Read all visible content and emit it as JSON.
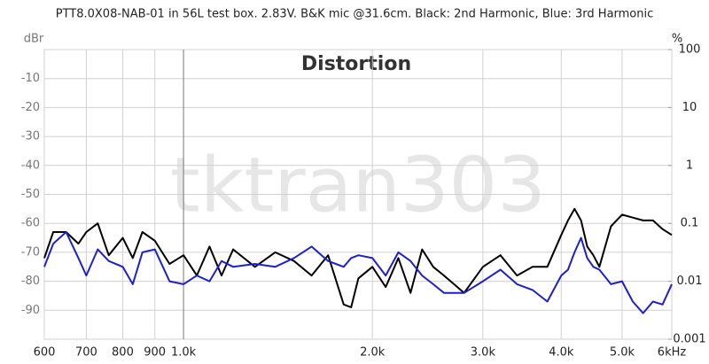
{
  "chart_data": {
    "type": "line",
    "title": "PTT8.0X08-NAB-01 in 56L test box. 2.83V. B&K mic @31.6cm. Black: 2nd Harmonic, Blue: 3rd Harmonic",
    "subtitle": "Distortion",
    "watermark": "tktran303",
    "y_label": "dBr",
    "y2_label": "%",
    "x_log": true,
    "y2_log": true,
    "grid": true,
    "xlim": [
      600,
      6000
    ],
    "xticks": [
      600,
      700,
      800,
      900,
      {
        "value": 1000,
        "label": "1.0k"
      },
      {
        "value": 2000,
        "label": "2.0k"
      },
      {
        "value": 3000,
        "label": "3.0k"
      },
      {
        "value": 4000,
        "label": "4.0k"
      },
      {
        "value": 5000,
        "label": "5.0k"
      },
      {
        "value": 6000,
        "label": "6kHz"
      }
    ],
    "ylim": [
      -100,
      0
    ],
    "yticks": [
      -90,
      -80,
      -70,
      -60,
      -50,
      -40,
      -30,
      -20,
      -10
    ],
    "y2lim": [
      0.001,
      100
    ],
    "y2ticks": [
      0.001,
      0.01,
      0.1,
      1,
      10,
      100
    ],
    "x": [
      600,
      620,
      650,
      680,
      700,
      730,
      760,
      800,
      830,
      860,
      900,
      950,
      1000,
      1050,
      1100,
      1150,
      1200,
      1300,
      1400,
      1500,
      1600,
      1700,
      1800,
      1850,
      1900,
      2000,
      2100,
      2200,
      2300,
      2400,
      2500,
      2600,
      2800,
      3000,
      3200,
      3400,
      3600,
      3800,
      4000,
      4100,
      4200,
      4300,
      4400,
      4500,
      4600,
      4800,
      5000,
      5200,
      5400,
      5600,
      5800,
      6000
    ],
    "series": [
      {
        "name": "2nd Harmonic",
        "color": "#000000",
        "values": [
          -72,
          -63,
          -63,
          -67,
          -63,
          -60,
          -71,
          -65,
          -72,
          -63,
          -66,
          -74,
          -71,
          -78,
          -68,
          -78,
          -69,
          -75,
          -70,
          -73,
          -78,
          -71,
          -88,
          -89,
          -79,
          -75,
          -82,
          -72,
          -84,
          -69,
          -75,
          -78,
          -84,
          -75,
          -71,
          -78,
          -75,
          -75,
          -64,
          -59,
          -55,
          -59,
          -68,
          -71,
          -75,
          -61,
          -57,
          -58,
          -59,
          -59,
          -62,
          -64
        ]
      },
      {
        "name": "3rd Harmonic",
        "color": "#1f1fcc",
        "values": [
          -75,
          -67,
          -63,
          -72,
          -78,
          -69,
          -73,
          -75,
          -81,
          -70,
          -69,
          -80,
          -81,
          -78,
          -80,
          -73,
          -75,
          -74,
          -75,
          -72,
          -68,
          -73,
          -75,
          -72,
          -71,
          -72,
          -78,
          -70,
          -73,
          -78,
          -81,
          -84,
          -84,
          -80,
          -76,
          -81,
          -83,
          -87,
          -78,
          -76,
          -70,
          -65,
          -72,
          -75,
          -76,
          -81,
          -80,
          -87,
          -91,
          -87,
          -88,
          -81
        ]
      }
    ]
  }
}
